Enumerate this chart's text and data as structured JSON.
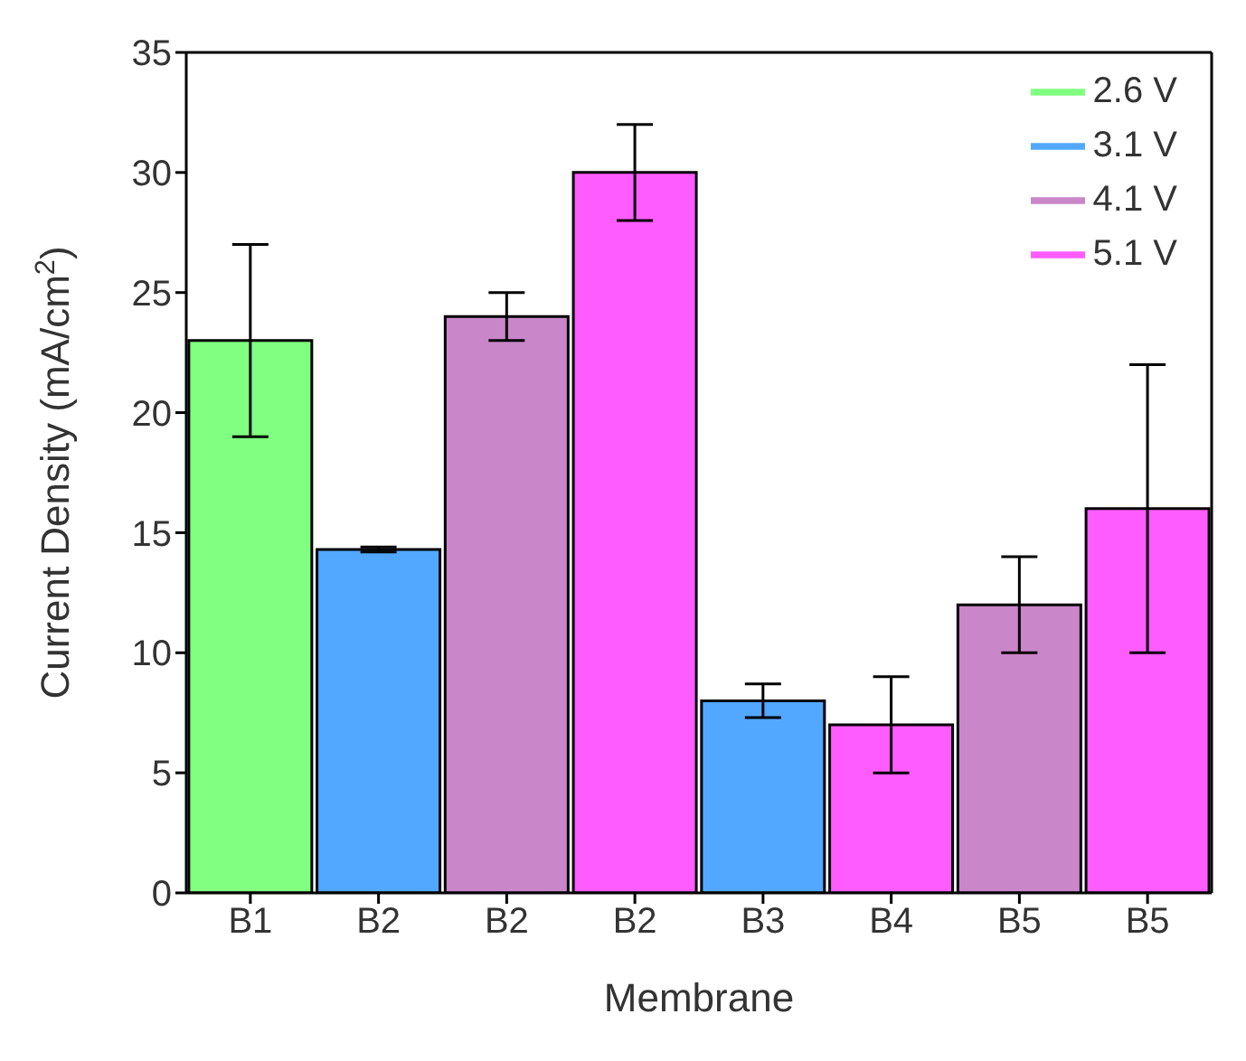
{
  "chart_data": {
    "type": "bar",
    "stacked": true,
    "xlabel": "Membrane",
    "ylabel": "Current Density (mA/cm$^{2}$)",
    "categories": [
      "B1",
      "B2",
      "B2",
      "B2",
      "B3",
      "B4",
      "B5",
      "B5"
    ],
    "series": [
      {
        "name": "2.6 V",
        "color": "#80ff80",
        "values": [
          23,
          null,
          null,
          null,
          null,
          null,
          null,
          null
        ],
        "errors": [
          4,
          null,
          null,
          null,
          null,
          null,
          null,
          null
        ]
      },
      {
        "name": "3.1 V",
        "color": "#52a8ff",
        "values": [
          null,
          14.3,
          null,
          null,
          8,
          null,
          null,
          null
        ],
        "errors": [
          null,
          0.1,
          null,
          null,
          0.7,
          null,
          null,
          null
        ]
      },
      {
        "name": "4.1 V",
        "color": "#c986c9",
        "values": [
          null,
          null,
          24,
          null,
          null,
          null,
          12,
          null
        ],
        "errors": [
          null,
          null,
          1,
          null,
          null,
          null,
          2,
          null
        ]
      },
      {
        "name": "5.1 V",
        "color": "#ff5cff",
        "values": [
          null,
          null,
          null,
          30,
          null,
          7,
          null,
          16
        ],
        "errors": [
          null,
          null,
          null,
          2,
          null,
          2,
          null,
          6
        ]
      }
    ],
    "ylim": [
      0,
      35
    ],
    "yticks": [
      0,
      5,
      10,
      15,
      20,
      25,
      30,
      35
    ],
    "grid": false,
    "legend": "top right"
  }
}
